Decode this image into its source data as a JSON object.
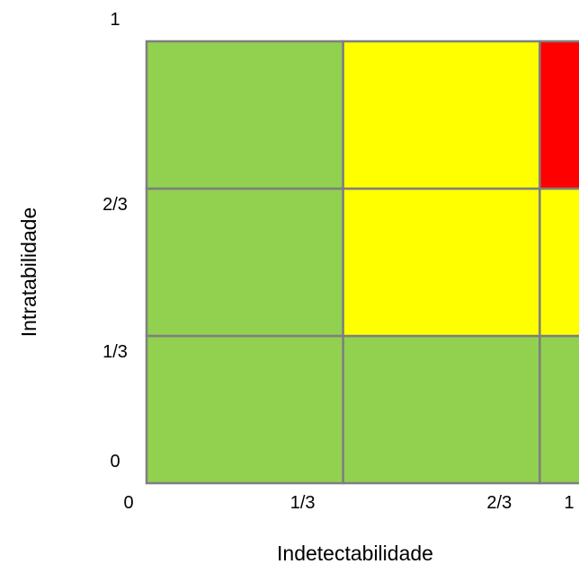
{
  "chart_data": {
    "type": "heatmap",
    "title": "",
    "xlabel": "Indetectabilidade",
    "ylabel": "Intratabilidade",
    "x_ticks": [
      "0",
      "1/3",
      "2/3",
      "1"
    ],
    "y_ticks": [
      "0",
      "1/3",
      "2/3",
      "1"
    ],
    "xlim": [
      0,
      1
    ],
    "ylim": [
      0,
      1
    ],
    "grid": true,
    "colors": {
      "low": "#92d050",
      "medium": "#ffff00",
      "high": "#ff0000",
      "gridline": "#7f7f7f"
    },
    "cells": [
      {
        "x_range": [
          0,
          0.3333
        ],
        "y_range": [
          0,
          0.3333
        ],
        "level": "low"
      },
      {
        "x_range": [
          0.3333,
          0.6667
        ],
        "y_range": [
          0,
          0.3333
        ],
        "level": "low"
      },
      {
        "x_range": [
          0.6667,
          1
        ],
        "y_range": [
          0,
          0.3333
        ],
        "level": "low"
      },
      {
        "x_range": [
          0,
          0.3333
        ],
        "y_range": [
          0.3333,
          0.6667
        ],
        "level": "low"
      },
      {
        "x_range": [
          0.3333,
          0.6667
        ],
        "y_range": [
          0.3333,
          0.6667
        ],
        "level": "medium"
      },
      {
        "x_range": [
          0.6667,
          1
        ],
        "y_range": [
          0.3333,
          0.6667
        ],
        "level": "medium"
      },
      {
        "x_range": [
          0,
          0.3333
        ],
        "y_range": [
          0.6667,
          1
        ],
        "level": "low"
      },
      {
        "x_range": [
          0.3333,
          0.6667
        ],
        "y_range": [
          0.6667,
          1
        ],
        "level": "medium"
      },
      {
        "x_range": [
          0.6667,
          1
        ],
        "y_range": [
          0.6667,
          1
        ],
        "level": "high"
      }
    ]
  }
}
